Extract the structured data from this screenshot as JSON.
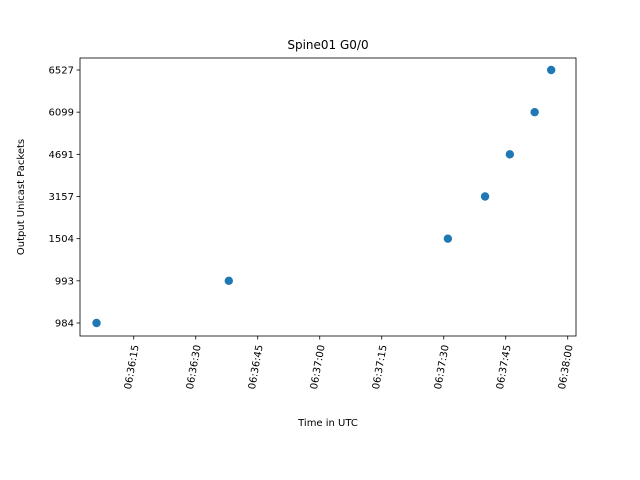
{
  "chart_data": {
    "type": "scatter",
    "title": "Spine01 G0/0",
    "xlabel": "Time in UTC",
    "ylabel": "Output Unicast Packets",
    "x": [
      "06:36:06",
      "06:36:38",
      "06:37:31",
      "06:37:40",
      "06:37:46",
      "06:37:52",
      "06:37:56"
    ],
    "y": [
      "984",
      "993",
      "1504",
      "3157",
      "4691",
      "6099",
      "6527"
    ],
    "y_categories": [
      "984",
      "993",
      "1504",
      "3157",
      "4691",
      "6099",
      "6527"
    ],
    "x_ticks": [
      "06:36:15",
      "06:36:30",
      "06:36:45",
      "06:37:00",
      "06:37:15",
      "06:37:30",
      "06:37:45",
      "06:38:00"
    ],
    "xlim": [
      "06:36:02",
      "06:38:02"
    ],
    "legend": "none",
    "grid": false,
    "colors": {
      "marker": "#1f77b4",
      "axis": "#000000"
    }
  }
}
